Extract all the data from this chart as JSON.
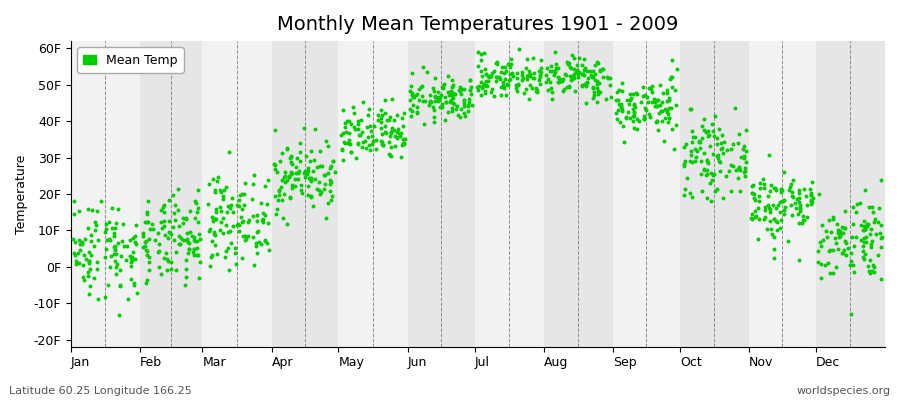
{
  "title": "Monthly Mean Temperatures 1901 - 2009",
  "ylabel": "Temperature",
  "xlabel": "",
  "months": [
    "Jan",
    "Feb",
    "Mar",
    "Apr",
    "May",
    "Jun",
    "Jul",
    "Aug",
    "Sep",
    "Oct",
    "Nov",
    "Dec"
  ],
  "monthly_means": [
    5,
    7,
    13,
    25,
    36,
    46,
    52,
    52,
    44,
    30,
    17,
    8
  ],
  "monthly_stds": [
    7,
    6,
    6,
    5,
    4,
    3,
    3,
    3,
    4,
    5,
    5,
    6
  ],
  "years": 109,
  "ylim": [
    -22,
    62
  ],
  "yticks": [
    -20,
    -10,
    0,
    10,
    20,
    30,
    40,
    50,
    60
  ],
  "ytick_labels": [
    "-20F",
    "-10F",
    "0F",
    "10F",
    "20F",
    "30F",
    "40F",
    "50F",
    "60F"
  ],
  "dot_color": "#00cc00",
  "dot_size": 8,
  "bg_color_light": "#f2f2f2",
  "bg_color_dark": "#e6e6e6",
  "grid_color": "#666666",
  "legend_label": "Mean Temp",
  "footer_left": "Latitude 60.25 Longitude 166.25",
  "footer_right": "worldspecies.org",
  "title_fontsize": 14,
  "axis_fontsize": 9,
  "footer_fontsize": 8
}
